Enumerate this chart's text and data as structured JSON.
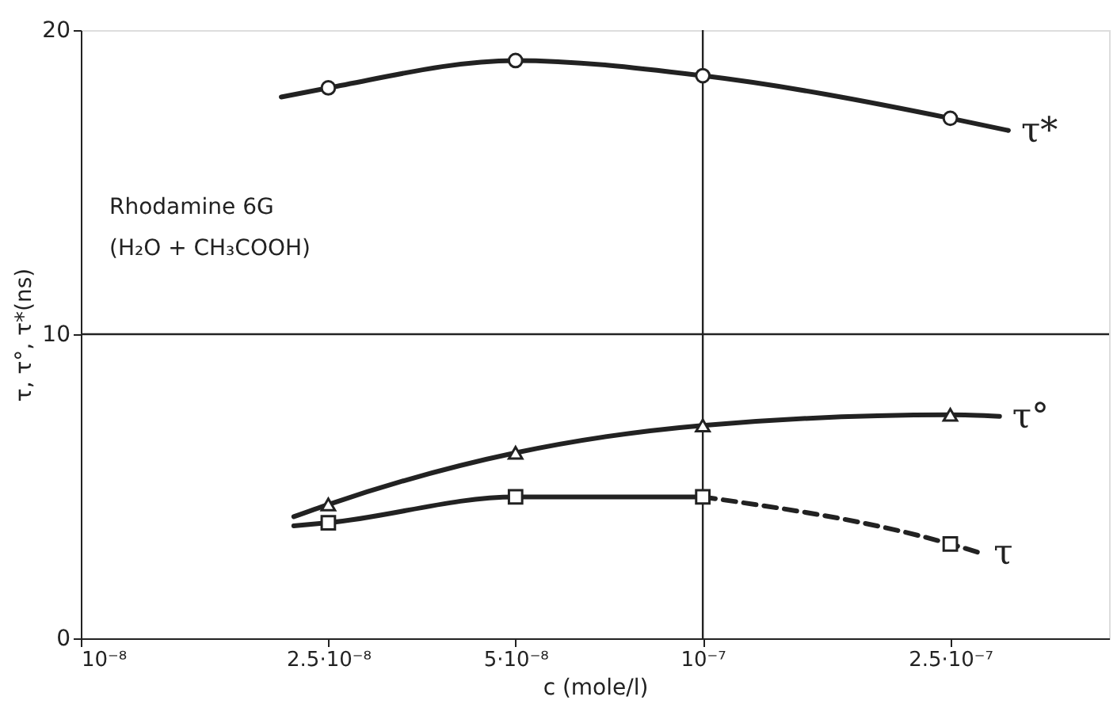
{
  "chart_data": {
    "type": "line",
    "xlabel": "c (mole/l)",
    "ylabel": "τ, τ°, τ*(ns)",
    "log": "x",
    "xlim": [
      1e-08,
      4.5e-07
    ],
    "ylim": [
      0,
      20
    ],
    "yticks": [
      0,
      10,
      20
    ],
    "xticks": [
      {
        "value": 1e-08,
        "label": "10⁻⁸"
      },
      {
        "value": 2.5e-08,
        "label": "2.5·10⁻⁸"
      },
      {
        "value": 5e-08,
        "label": "5·10⁻⁸"
      },
      {
        "value": 1e-07,
        "label": "10⁻⁷"
      },
      {
        "value": 2.5e-07,
        "label": "2.5·10⁻⁷"
      }
    ],
    "ref_lines": [
      {
        "axis": "x",
        "value": 1e-07
      },
      {
        "axis": "y",
        "value": 10
      }
    ],
    "annotations": [
      "Rhodamine 6G",
      "(H₂O + CH₃COOH)"
    ],
    "series": [
      {
        "name": "τ*",
        "type": "line",
        "marker": "none",
        "line_style": "solid",
        "color": "#222222",
        "x": [
          2.1e-08,
          2.5e-08,
          5e-08,
          1e-07,
          2.5e-07,
          3.1e-07
        ],
        "values": [
          17.8,
          18.1,
          19.0,
          18.5,
          17.1,
          16.7
        ]
      },
      {
        "type": "scatter",
        "marker": "circle",
        "color": "#222222",
        "x": [
          2.5e-08,
          5e-08,
          1e-07,
          2.5e-07
        ],
        "values": [
          18.1,
          19.0,
          18.5,
          17.1
        ]
      },
      {
        "name": "τ°",
        "type": "line",
        "marker": "none",
        "line_style": "solid",
        "color": "#222222",
        "x": [
          2.2e-08,
          2.5e-08,
          5e-08,
          1e-07,
          2.5e-07,
          3e-07
        ],
        "values": [
          4.0,
          4.4,
          6.1,
          7.0,
          7.35,
          7.3
        ]
      },
      {
        "type": "scatter",
        "marker": "triangle",
        "color": "#222222",
        "x": [
          2.5e-08,
          5e-08,
          1e-07,
          2.5e-07
        ],
        "values": [
          4.4,
          6.1,
          7.0,
          7.35
        ]
      },
      {
        "type": "line",
        "marker": "none",
        "line_style": "solid",
        "color": "#222222",
        "x": [
          2.2e-08,
          2.5e-08,
          5e-08,
          1e-07
        ],
        "values": [
          3.7,
          3.8,
          4.65,
          4.65
        ]
      },
      {
        "name": "τ",
        "type": "line",
        "marker": "none",
        "line_style": "dashed",
        "color": "#222222",
        "x": [
          1e-07,
          2.5e-07,
          2.8e-07
        ],
        "values": [
          4.65,
          3.1,
          2.8
        ]
      },
      {
        "type": "scatter",
        "marker": "square",
        "color": "#222222",
        "x": [
          2.5e-08,
          5e-08,
          1e-07,
          2.5e-07
        ],
        "values": [
          3.8,
          4.65,
          4.65,
          3.1
        ]
      }
    ]
  }
}
